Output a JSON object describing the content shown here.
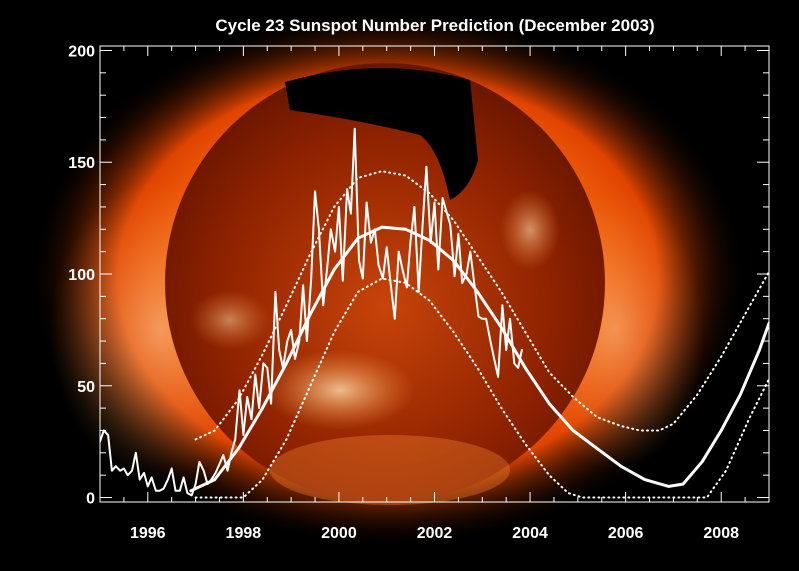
{
  "chart_data": {
    "type": "line",
    "title": "Cycle 23 Sunspot Number Prediction (December 2003)",
    "xlabel": "",
    "ylabel": "",
    "xlim": [
      1995.0,
      2009.0
    ],
    "ylim": [
      -2,
      202
    ],
    "x_ticks": [
      1996,
      1998,
      2000,
      2002,
      2004,
      2006,
      2008
    ],
    "x_tick_labels": [
      "1996",
      "1998",
      "2000",
      "2002",
      "2004",
      "2006",
      "2008"
    ],
    "y_ticks": [
      0,
      50,
      100,
      150,
      200
    ],
    "y_tick_labels": [
      "0",
      "50",
      "100",
      "150",
      "200"
    ],
    "background": "Soft X-ray image of the solar corona",
    "colors": {
      "line": "#ffffff",
      "text": "#ffffff",
      "frame": "#ffffff"
    },
    "series": [
      {
        "name": "observed monthly sunspot number",
        "style": "solid-thin",
        "x": [
          1995.0,
          1995.08,
          1995.17,
          1995.25,
          1995.33,
          1995.42,
          1995.5,
          1995.58,
          1995.67,
          1995.75,
          1995.83,
          1995.92,
          1996.0,
          1996.08,
          1996.17,
          1996.25,
          1996.33,
          1996.42,
          1996.5,
          1996.58,
          1996.67,
          1996.75,
          1996.83,
          1996.92,
          1997.0,
          1997.08,
          1997.17,
          1997.25,
          1997.33,
          1997.42,
          1997.5,
          1997.58,
          1997.67,
          1997.75,
          1997.83,
          1997.92,
          1998.0,
          1998.08,
          1998.17,
          1998.25,
          1998.33,
          1998.42,
          1998.5,
          1998.58,
          1998.67,
          1998.75,
          1998.83,
          1998.92,
          1999.0,
          1999.08,
          1999.17,
          1999.25,
          1999.33,
          1999.42,
          1999.5,
          1999.58,
          1999.67,
          1999.75,
          1999.83,
          1999.92,
          2000.0,
          2000.08,
          2000.17,
          2000.25,
          2000.33,
          2000.42,
          2000.5,
          2000.58,
          2000.67,
          2000.75,
          2000.83,
          2000.92,
          2001.0,
          2001.08,
          2001.17,
          2001.25,
          2001.33,
          2001.42,
          2001.5,
          2001.58,
          2001.67,
          2001.75,
          2001.83,
          2001.92,
          2002.0,
          2002.08,
          2002.17,
          2002.25,
          2002.33,
          2002.42,
          2002.5,
          2002.58,
          2002.67,
          2002.75,
          2002.83,
          2002.92,
          2003.0,
          2003.08,
          2003.17,
          2003.25,
          2003.33,
          2003.42,
          2003.5,
          2003.58,
          2003.67,
          2003.75,
          2003.83
        ],
        "y": [
          25,
          30,
          28,
          12,
          14,
          12,
          13,
          10,
          12,
          20,
          8,
          11,
          5,
          9,
          3,
          3,
          4,
          8,
          13,
          3,
          3,
          9,
          2,
          1,
          6,
          16,
          12,
          6,
          8,
          11,
          15,
          19,
          12,
          20,
          26,
          48,
          28,
          45,
          35,
          55,
          40,
          60,
          58,
          42,
          92,
          66,
          58,
          70,
          75,
          62,
          70,
          95,
          70,
          98,
          137,
          120,
          86,
          102,
          120,
          110,
          130,
          97,
          138,
          127,
          165,
          106,
          98,
          132,
          114,
          120,
          104,
          98,
          112,
          96,
          80,
          110,
          102,
          94,
          115,
          130,
          92,
          122,
          148,
          114,
          132,
          102,
          134,
          128,
          122,
          99,
          118,
          96,
          100,
          110,
          96,
          81,
          80,
          80,
          70,
          62,
          54,
          86,
          66,
          80,
          60,
          58,
          66
        ]
      },
      {
        "name": "predicted smoothed sunspot number",
        "style": "solid-thick",
        "x": [
          1996.9,
          1997.4,
          1997.9,
          1998.4,
          1998.9,
          1999.4,
          1999.9,
          2000.4,
          2000.9,
          2001.4,
          2001.9,
          2002.4,
          2002.9,
          2003.4,
          2003.9,
          2004.4,
          2004.9,
          2005.4,
          2005.9,
          2006.4,
          2006.9,
          2007.2,
          2007.6,
          2008.0,
          2008.4,
          2008.8,
          2009.0
        ],
        "y": [
          3,
          8,
          22,
          40,
          60,
          82,
          102,
          116,
          121,
          120,
          115,
          106,
          92,
          76,
          58,
          42,
          30,
          22,
          14,
          8,
          5,
          6,
          16,
          30,
          46,
          66,
          78
        ]
      },
      {
        "name": "upper prediction bound",
        "style": "dotted",
        "x": [
          1997.0,
          1997.4,
          1997.9,
          1998.4,
          1998.9,
          1999.4,
          1999.9,
          2000.4,
          2000.9,
          2001.4,
          2001.9,
          2002.4,
          2002.9,
          2003.4,
          2003.9,
          2004.4,
          2004.9,
          2005.4,
          2005.9,
          2006.3,
          2006.7,
          2007.0,
          2007.5,
          2008.0,
          2008.5,
          2009.0
        ],
        "y": [
          26,
          30,
          44,
          64,
          86,
          109,
          130,
          143,
          146,
          144,
          136,
          124,
          108,
          92,
          74,
          56,
          45,
          36,
          32,
          30,
          30,
          33,
          46,
          63,
          82,
          101
        ]
      },
      {
        "name": "lower prediction bound",
        "style": "dotted",
        "x": [
          1997.0,
          1997.5,
          1998.0,
          1998.4,
          1998.9,
          1999.4,
          1999.9,
          2000.4,
          2000.9,
          2001.4,
          2001.9,
          2002.4,
          2002.9,
          2003.4,
          2003.9,
          2004.4,
          2004.8,
          2005.1,
          2006.0,
          2007.0,
          2007.7,
          2008.1,
          2008.6,
          2009.0
        ],
        "y": [
          0,
          0,
          0,
          8,
          26,
          50,
          74,
          92,
          98,
          96,
          88,
          74,
          58,
          40,
          24,
          10,
          2,
          0,
          0,
          0,
          0,
          12,
          36,
          53
        ]
      }
    ]
  }
}
